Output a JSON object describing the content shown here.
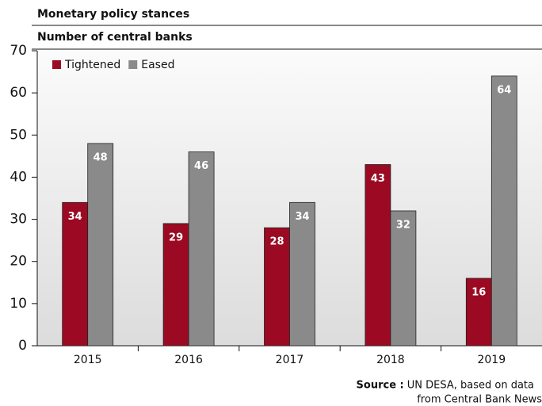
{
  "chart_data": {
    "type": "bar",
    "title": "Monetary policy stances",
    "subtitle": "Number of central banks",
    "categories": [
      "2015",
      "2016",
      "2017",
      "2018",
      "2019"
    ],
    "series": [
      {
        "name": "Tightened",
        "color": "#9b0a22",
        "values": [
          34,
          29,
          28,
          43,
          16
        ]
      },
      {
        "name": "Eased",
        "color": "#8a8a8a",
        "values": [
          48,
          46,
          34,
          32,
          64
        ]
      }
    ],
    "ylim": [
      0,
      70
    ],
    "yticks": [
      0,
      10,
      20,
      30,
      40,
      50,
      60,
      70
    ],
    "legend": "top-left"
  },
  "source": {
    "label": "Source :",
    "lines": [
      "UN DESA, based on data",
      "from Central Bank News"
    ]
  }
}
